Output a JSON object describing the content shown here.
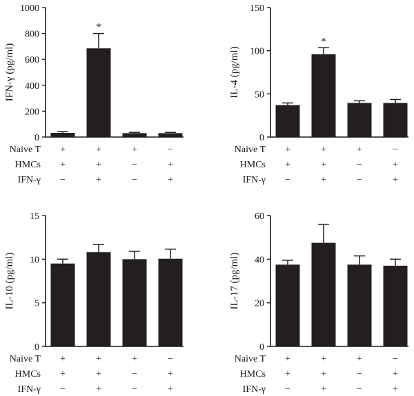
{
  "figure": {
    "condition_labels": [
      "Naive T",
      "HMCs",
      "IFN-γ"
    ],
    "conditions": [
      [
        "+",
        "+",
        "+",
        "−"
      ],
      [
        "+",
        "+",
        "−",
        "+"
      ],
      [
        "−",
        "+",
        "−",
        "+"
      ]
    ]
  },
  "chart_data": [
    {
      "type": "bar",
      "ylabel": "IFN-γ (pg/ml)",
      "ylim": [
        0,
        1000
      ],
      "yticks": [
        0,
        200,
        400,
        600,
        800,
        1000
      ],
      "values": [
        32,
        685,
        30,
        30
      ],
      "errors": [
        10,
        115,
        6,
        6
      ],
      "annotations": [
        "",
        "*",
        "",
        ""
      ]
    },
    {
      "type": "bar",
      "ylabel": "IL-4 (pg/ml)",
      "ylim": [
        0,
        150
      ],
      "yticks": [
        0,
        50,
        100,
        150
      ],
      "values": [
        37,
        96,
        39.5,
        39.5
      ],
      "errors": [
        2.5,
        7.5,
        2.5,
        4
      ],
      "annotations": [
        "",
        "*",
        "",
        ""
      ]
    },
    {
      "type": "bar",
      "ylabel": "IL-10 (pg/ml)",
      "ylim": [
        0,
        15
      ],
      "yticks": [
        0,
        5,
        10,
        15
      ],
      "values": [
        9.5,
        10.8,
        10,
        10.05
      ],
      "errors": [
        0.5,
        0.9,
        0.9,
        1.1
      ],
      "annotations": [
        "",
        "",
        "",
        ""
      ]
    },
    {
      "type": "bar",
      "ylabel": "IL-17 (pg/ml)",
      "ylim": [
        0,
        60
      ],
      "yticks": [
        0,
        20,
        40,
        60
      ],
      "values": [
        37.5,
        47.5,
        37.5,
        37
      ],
      "errors": [
        2,
        8.5,
        4,
        3
      ],
      "annotations": [
        "",
        "",
        "",
        ""
      ]
    }
  ]
}
